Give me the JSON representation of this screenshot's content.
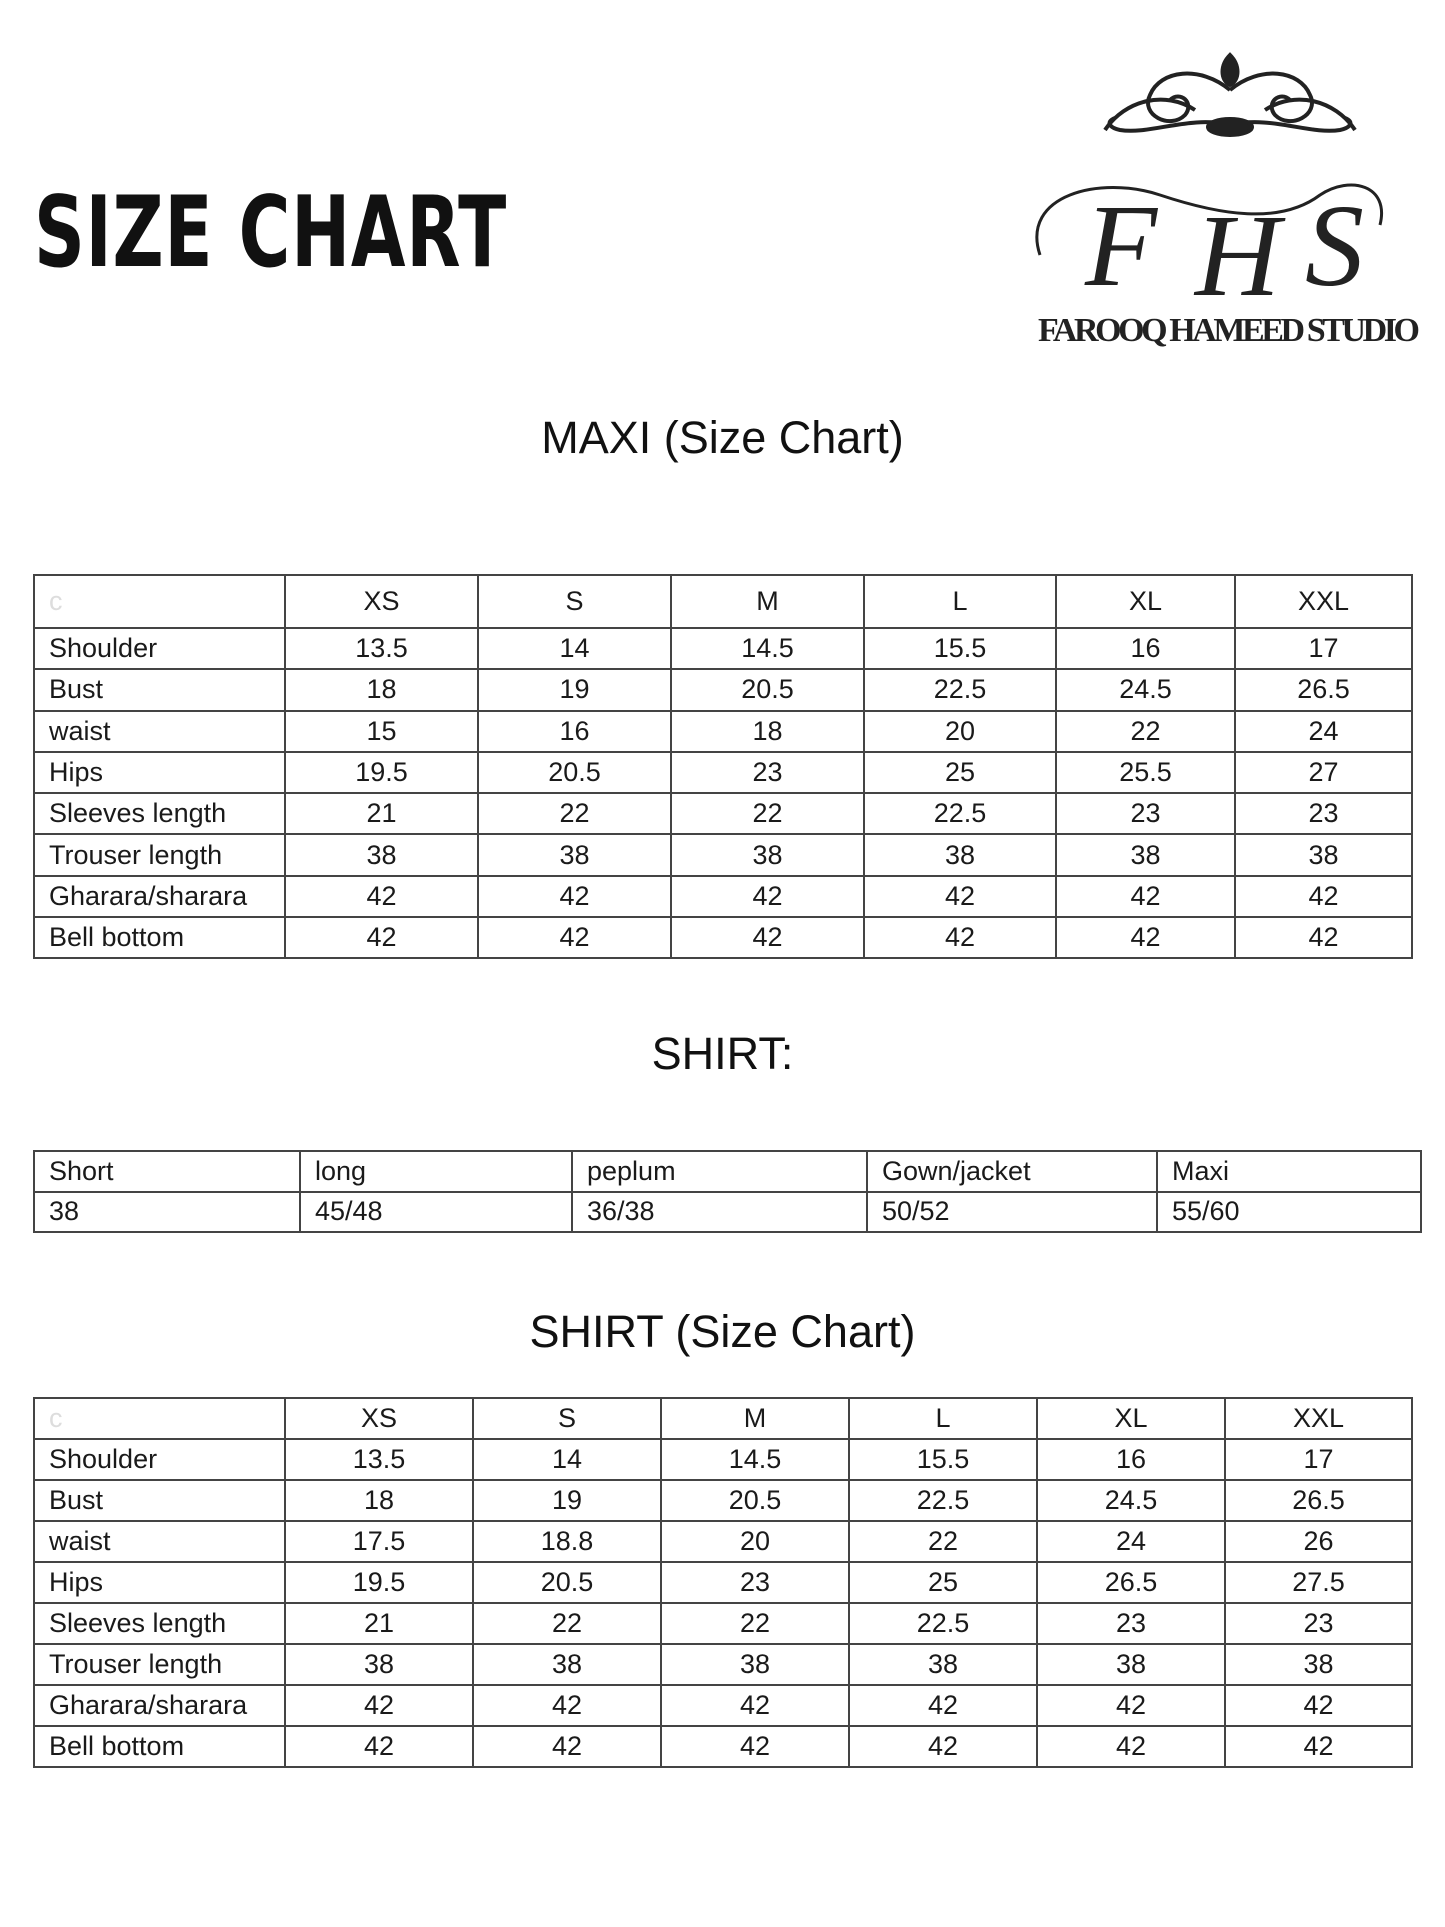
{
  "header": {
    "title": "SIZE CHART",
    "logo": {
      "monogram": [
        "F",
        "H",
        "S"
      ],
      "name": "FAROOQ HAMEED STUDIO"
    }
  },
  "sections": [
    {
      "heading": "MAXI (Size Chart)",
      "table": {
        "columns": [
          "c",
          "XS",
          "S",
          "M",
          "L",
          "XL",
          "XXL"
        ],
        "rows": [
          [
            "Shoulder",
            "13.5",
            "14",
            "14.5",
            "15.5",
            "16",
            "17"
          ],
          [
            "Bust",
            "18",
            "19",
            "20.5",
            "22.5",
            "24.5",
            "26.5"
          ],
          [
            "waist",
            "15",
            "16",
            "18",
            "20",
            "22",
            "24"
          ],
          [
            "Hips",
            "19.5",
            "20.5",
            "23",
            "25",
            "25.5",
            "27"
          ],
          [
            "Sleeves length",
            "21",
            "22",
            "22",
            "22.5",
            "23",
            "23"
          ],
          [
            "Trouser length",
            "38",
            "38",
            "38",
            "38",
            "38",
            "38"
          ],
          [
            "Gharara/sharara",
            "42",
            "42",
            "42",
            "42",
            "42",
            "42"
          ],
          [
            "Bell bottom",
            "42",
            "42",
            "42",
            "42",
            "42",
            "42"
          ]
        ]
      }
    },
    {
      "heading": "SHIRT:",
      "table": {
        "columns": [
          "Short",
          "long",
          "peplum",
          "Gown/jacket",
          "Maxi"
        ],
        "rows": [
          [
            "38",
            "45/48",
            "36/38",
            "50/52",
            "55/60"
          ]
        ]
      }
    },
    {
      "heading": "SHIRT (Size Chart)",
      "table": {
        "columns": [
          "c",
          "XS",
          "S",
          "M",
          "L",
          "XL",
          "XXL"
        ],
        "rows": [
          [
            "Shoulder",
            "13.5",
            "14",
            "14.5",
            "15.5",
            "16",
            "17"
          ],
          [
            "Bust",
            "18",
            "19",
            "20.5",
            "22.5",
            "24.5",
            "26.5"
          ],
          [
            "waist",
            "17.5",
            "18.8",
            "20",
            "22",
            "24",
            "26"
          ],
          [
            "Hips",
            "19.5",
            "20.5",
            "23",
            "25",
            "26.5",
            "27.5"
          ],
          [
            "Sleeves length",
            "21",
            "22",
            "22",
            "22.5",
            "23",
            "23"
          ],
          [
            "Trouser length",
            "38",
            "38",
            "38",
            "38",
            "38",
            "38"
          ],
          [
            "Gharara/sharara",
            "42",
            "42",
            "42",
            "42",
            "42",
            "42"
          ],
          [
            "Bell bottom",
            "42",
            "42",
            "42",
            "42",
            "42",
            "42"
          ]
        ]
      }
    }
  ]
}
